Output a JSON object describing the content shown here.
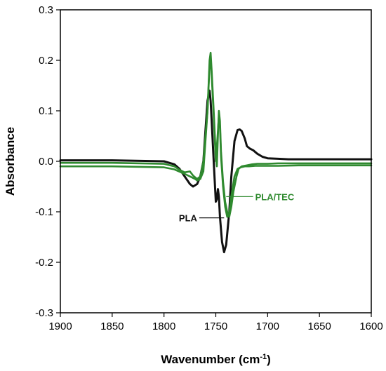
{
  "chart_data": {
    "type": "line",
    "title": "",
    "xlabel_main": "Wavenumber (cm",
    "xlabel_sup": "-1",
    "xlabel_close": ")",
    "ylabel": "Absorbance",
    "xlim": [
      1900,
      1600
    ],
    "ylim": [
      -0.3,
      0.3
    ],
    "x_reversed": true,
    "grid": false,
    "x_ticks": [
      1900,
      1850,
      1800,
      1750,
      1700,
      1650,
      1600
    ],
    "y_ticks": [
      -0.3,
      -0.2,
      -0.1,
      0.0,
      0.1,
      0.2,
      0.3
    ],
    "y_tick_labels": [
      "-0.3",
      "-0.2",
      "-0.1",
      "0.0",
      "0.1",
      "0.2",
      "0.3"
    ],
    "colors": {
      "PLA": "#111111",
      "PLA/TEC": "#2f8a2f"
    },
    "series": [
      {
        "name": "PLA",
        "x": [
          1900,
          1850,
          1800,
          1790,
          1785,
          1780,
          1775,
          1772,
          1768,
          1765,
          1762,
          1760,
          1758,
          1756,
          1755,
          1754,
          1752,
          1750,
          1749,
          1748,
          1747,
          1746,
          1744,
          1742,
          1740,
          1737,
          1735,
          1732,
          1729,
          1727,
          1725,
          1722,
          1720,
          1717,
          1714,
          1710,
          1705,
          1700,
          1690,
          1680,
          1670,
          1650,
          1630,
          1600
        ],
        "y": [
          0.002,
          0.002,
          0.0,
          -0.006,
          -0.015,
          -0.03,
          -0.045,
          -0.05,
          -0.045,
          -0.03,
          0.0,
          0.06,
          0.12,
          0.14,
          0.12,
          0.08,
          0.0,
          -0.08,
          -0.075,
          -0.055,
          -0.07,
          -0.11,
          -0.16,
          -0.18,
          -0.165,
          -0.1,
          -0.03,
          0.04,
          0.062,
          0.063,
          0.06,
          0.045,
          0.03,
          0.025,
          0.022,
          0.015,
          0.009,
          0.006,
          0.005,
          0.004,
          0.004,
          0.004,
          0.004,
          0.004
        ]
      },
      {
        "name": "PLA/TEC",
        "x": [
          1900,
          1850,
          1800,
          1790,
          1785,
          1780,
          1775,
          1772,
          1768,
          1765,
          1762,
          1758,
          1756,
          1755,
          1754,
          1752,
          1750,
          1749,
          1748,
          1747,
          1746,
          1745,
          1743,
          1741,
          1739,
          1737,
          1735,
          1733,
          1730,
          1728,
          1725,
          1720,
          1715,
          1710,
          1700,
          1690,
          1670,
          1650,
          1630,
          1600
        ],
        "y": [
          -0.003,
          -0.003,
          -0.005,
          -0.01,
          -0.017,
          -0.022,
          -0.02,
          -0.028,
          -0.035,
          -0.03,
          0.0,
          0.1,
          0.2,
          0.215,
          0.18,
          0.1,
          0.01,
          -0.01,
          0.05,
          0.1,
          0.08,
          0.02,
          -0.04,
          -0.08,
          -0.1,
          -0.11,
          -0.09,
          -0.06,
          -0.03,
          -0.015,
          -0.01,
          -0.008,
          -0.006,
          -0.005,
          -0.005,
          -0.004,
          -0.004,
          -0.004,
          -0.004,
          -0.004
        ]
      },
      {
        "name": "PLA/TEC",
        "x": [
          1900,
          1850,
          1800,
          1790,
          1780,
          1775,
          1770,
          1768,
          1765,
          1762,
          1758,
          1756,
          1755,
          1754,
          1752,
          1750,
          1748,
          1747,
          1746,
          1745,
          1743,
          1741,
          1739,
          1737,
          1735,
          1732,
          1729,
          1726,
          1722,
          1718,
          1712,
          1705,
          1700,
          1690,
          1670,
          1650,
          1630,
          1600
        ],
        "y": [
          -0.01,
          -0.01,
          -0.012,
          -0.016,
          -0.025,
          -0.03,
          -0.035,
          -0.038,
          -0.035,
          -0.02,
          0.1,
          0.19,
          0.205,
          0.17,
          0.09,
          0.0,
          0.06,
          0.09,
          0.07,
          0.01,
          -0.05,
          -0.09,
          -0.11,
          -0.1,
          -0.07,
          -0.03,
          -0.015,
          -0.012,
          -0.01,
          -0.01,
          -0.009,
          -0.009,
          -0.009,
          -0.009,
          -0.008,
          -0.008,
          -0.008,
          -0.008
        ]
      }
    ],
    "annotations": [
      {
        "text": "PLA",
        "x": 1768,
        "y": -0.112,
        "arrow_to_x": 1742,
        "arrow_to_y": -0.112,
        "color": "#111111"
      },
      {
        "text": "PLA/TEC",
        "x": 1712,
        "y": -0.07,
        "arrow_to_x": 1740,
        "arrow_to_y": -0.07,
        "color": "#2f8a2f"
      }
    ]
  }
}
